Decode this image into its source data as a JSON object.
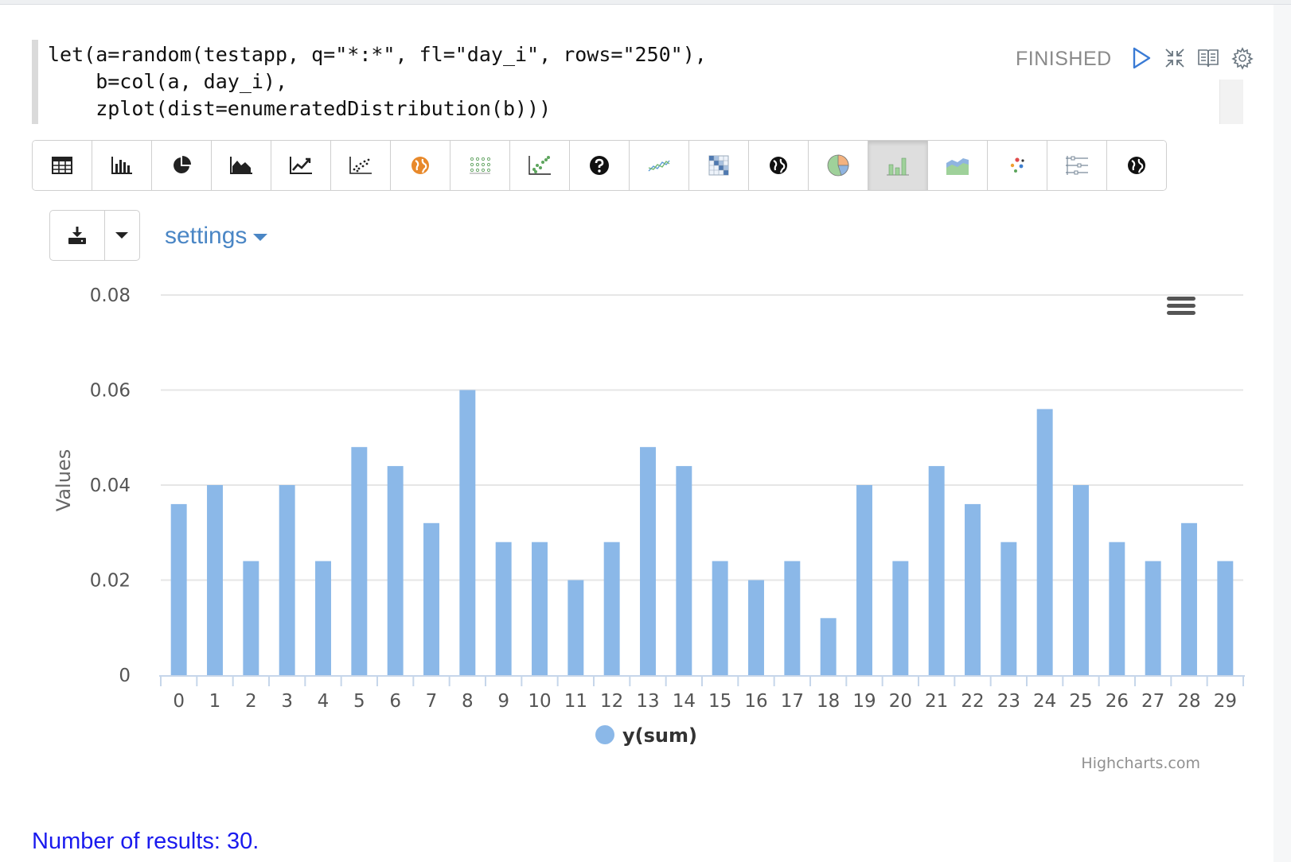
{
  "editor": {
    "code_lines": [
      "let(a=random(testapp, q=\"*:*\", fl=\"day_i\", rows=\"250\"),",
      "    b=col(a, day_i),",
      "    zplot(dist=enumeratedDistribution(b)))"
    ]
  },
  "paragraph": {
    "status": "FINISHED",
    "controls": [
      "run-icon",
      "collapse-icon",
      "book-icon",
      "gear-icon"
    ]
  },
  "viz_toolbar": {
    "buttons": [
      {
        "icon": "table-icon"
      },
      {
        "icon": "bar-chart-icon"
      },
      {
        "icon": "pie-chart-icon"
      },
      {
        "icon": "area-chart-icon"
      },
      {
        "icon": "line-chart-icon"
      },
      {
        "icon": "scatter-chart-icon"
      },
      {
        "icon": "globe-orange-icon"
      },
      {
        "icon": "dot-grid-icon"
      },
      {
        "icon": "scatter-green-icon"
      },
      {
        "icon": "question-icon"
      },
      {
        "icon": "multi-line-icon"
      },
      {
        "icon": "heatmap-icon"
      },
      {
        "icon": "globe-icon"
      },
      {
        "icon": "pie-color-icon"
      },
      {
        "icon": "bar-color-icon",
        "active": true
      },
      {
        "icon": "area-color-icon"
      },
      {
        "icon": "bubble-icon"
      },
      {
        "icon": "parallel-icon"
      },
      {
        "icon": "globe-icon"
      }
    ]
  },
  "download": {
    "icon": "download-icon",
    "caret_icon": "caret-down-icon"
  },
  "settings": {
    "label": "settings"
  },
  "chart_data": {
    "type": "bar",
    "categories": [
      "0",
      "1",
      "2",
      "3",
      "4",
      "5",
      "6",
      "7",
      "8",
      "9",
      "10",
      "11",
      "12",
      "13",
      "14",
      "15",
      "16",
      "17",
      "18",
      "19",
      "20",
      "21",
      "22",
      "23",
      "24",
      "25",
      "26",
      "27",
      "28",
      "29"
    ],
    "series": [
      {
        "name": "y(sum)",
        "color": "#8bb8e8",
        "values": [
          0.036,
          0.04,
          0.024,
          0.04,
          0.024,
          0.048,
          0.044,
          0.032,
          0.06,
          0.028,
          0.028,
          0.02,
          0.028,
          0.048,
          0.044,
          0.024,
          0.02,
          0.024,
          0.012,
          0.04,
          0.024,
          0.044,
          0.036,
          0.028,
          0.056,
          0.04,
          0.028,
          0.024,
          0.032,
          0.024
        ]
      }
    ],
    "ylabel": "Values",
    "xlabel": "",
    "ylim": [
      0,
      0.08
    ],
    "yticks": [
      "0",
      "0.02",
      "0.04",
      "0.06",
      "0.08"
    ],
    "grid": true,
    "legend": "bottom-center",
    "credits": "Highcharts.com",
    "menu_icon": "hamburger-menu-icon"
  },
  "results": {
    "text": "Number of results: 30."
  }
}
